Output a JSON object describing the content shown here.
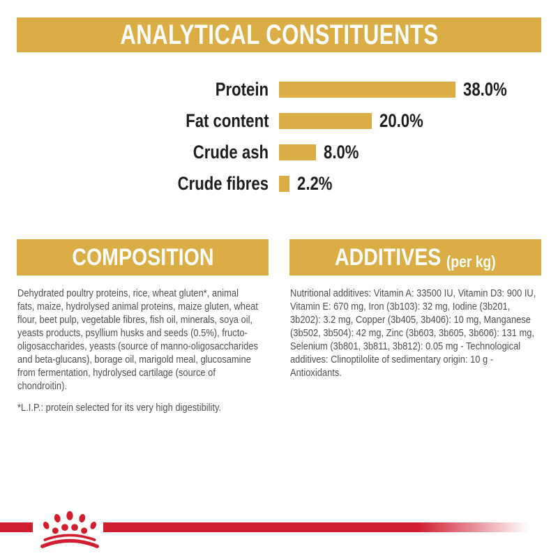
{
  "colors": {
    "gold": "#DBAE45",
    "brand_red": "#D01E30",
    "chart_text": "#1d1d1b",
    "body_text": "#4e4e4e",
    "banner_text": "#ffffff",
    "background": "#ffffff"
  },
  "header": {
    "title": "ANALYTICAL CONSTITUENTS"
  },
  "chart_data": {
    "type": "bar",
    "orientation": "horizontal",
    "title": "ANALYTICAL CONSTITUENTS",
    "categories": [
      "Protein",
      "Fat content",
      "Crude ash",
      "Crude fibres"
    ],
    "values": [
      38.0,
      20.0,
      8.0,
      2.2
    ],
    "value_labels": [
      "38.0%",
      "20.0%",
      "8.0%",
      "2.2%"
    ],
    "unit": "%",
    "xlim": [
      0,
      40
    ],
    "bar_color": "#DBAE45",
    "grid": false,
    "legend": false
  },
  "composition": {
    "heading": "COMPOSITION",
    "body": "Dehydrated poultry proteins, rice, wheat gluten*, animal\nfats, maize, hydrolysed animal proteins, maize gluten, wheat\nflour, beet pulp, vegetable fibres, fish oil, minerals, soya oil,\nyeasts products, psyllium husks and seeds (0.5%), fructo-\noligosaccharides, yeasts (source of manno-oligosaccharides\nand beta-glucans), borage oil, marigold meal, glucosamine\nfrom fermentation, hydrolysed cartilage (source of\nchondroitin).",
    "footnote": "*L.I.P.: protein selected for its very high digestibility."
  },
  "additives": {
    "heading": "ADDITIVES",
    "heading_suffix": "(per kg)",
    "body": "Nutritional additives: Vitamin A: 33500 IU, Vitamin D3: 900 IU,\nVitamin E: 670 mg, Iron (3b103): 32 mg, Iodine (3b201,\n3b202): 3.2 mg, Copper (3b405, 3b406): 10 mg, Manganese\n(3b502, 3b504): 42 mg, Zinc (3b603, 3b605, 3b606): 131 mg,\nSelenium (3b801, 3b811, 3b812): 0.05 mg - Technological\nadditives: Clinoptilolite of sedimentary origin: 10 g -\nAntioxidants."
  },
  "footer": {
    "logo": "royal-canin-crown"
  }
}
